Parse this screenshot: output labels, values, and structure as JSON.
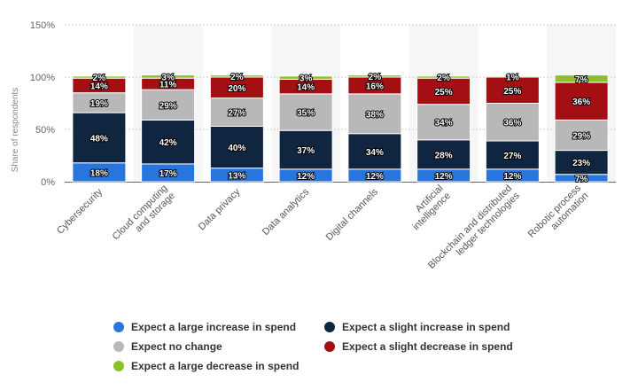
{
  "chart_data": {
    "type": "bar",
    "stacked": true,
    "ylabel": "Share of respondents",
    "ylim": [
      0,
      150
    ],
    "yticks": [
      "0%",
      "50%",
      "100%",
      "150%"
    ],
    "grid": true,
    "legend_placement": "bottom",
    "categories": [
      "Cybersecurity",
      "Cloud computing and storage",
      "Data privacy",
      "Data analytics",
      "Digital channels",
      "Artificial intelligence",
      "Blockchain and distributed ledger technologies",
      "Robotic process automation"
    ],
    "series": [
      {
        "name": "Expect a large increase in spend",
        "color": "#2876dd",
        "values": [
          18,
          17,
          13,
          12,
          12,
          12,
          12,
          7
        ]
      },
      {
        "name": "Expect a slight increase in spend",
        "color": "#0f2540",
        "values": [
          48,
          42,
          40,
          37,
          34,
          28,
          27,
          23
        ]
      },
      {
        "name": "Expect no change",
        "color": "#b8b8b8",
        "values": [
          19,
          29,
          27,
          35,
          38,
          34,
          36,
          29
        ]
      },
      {
        "name": "Expect a slight decrease in spend",
        "color": "#a30f13",
        "values": [
          14,
          11,
          20,
          14,
          16,
          25,
          25,
          36
        ]
      },
      {
        "name": "Expect a large decrease in spend",
        "color": "#8bc02a",
        "values": [
          2,
          3,
          2,
          3,
          2,
          2,
          1,
          7
        ]
      }
    ]
  }
}
